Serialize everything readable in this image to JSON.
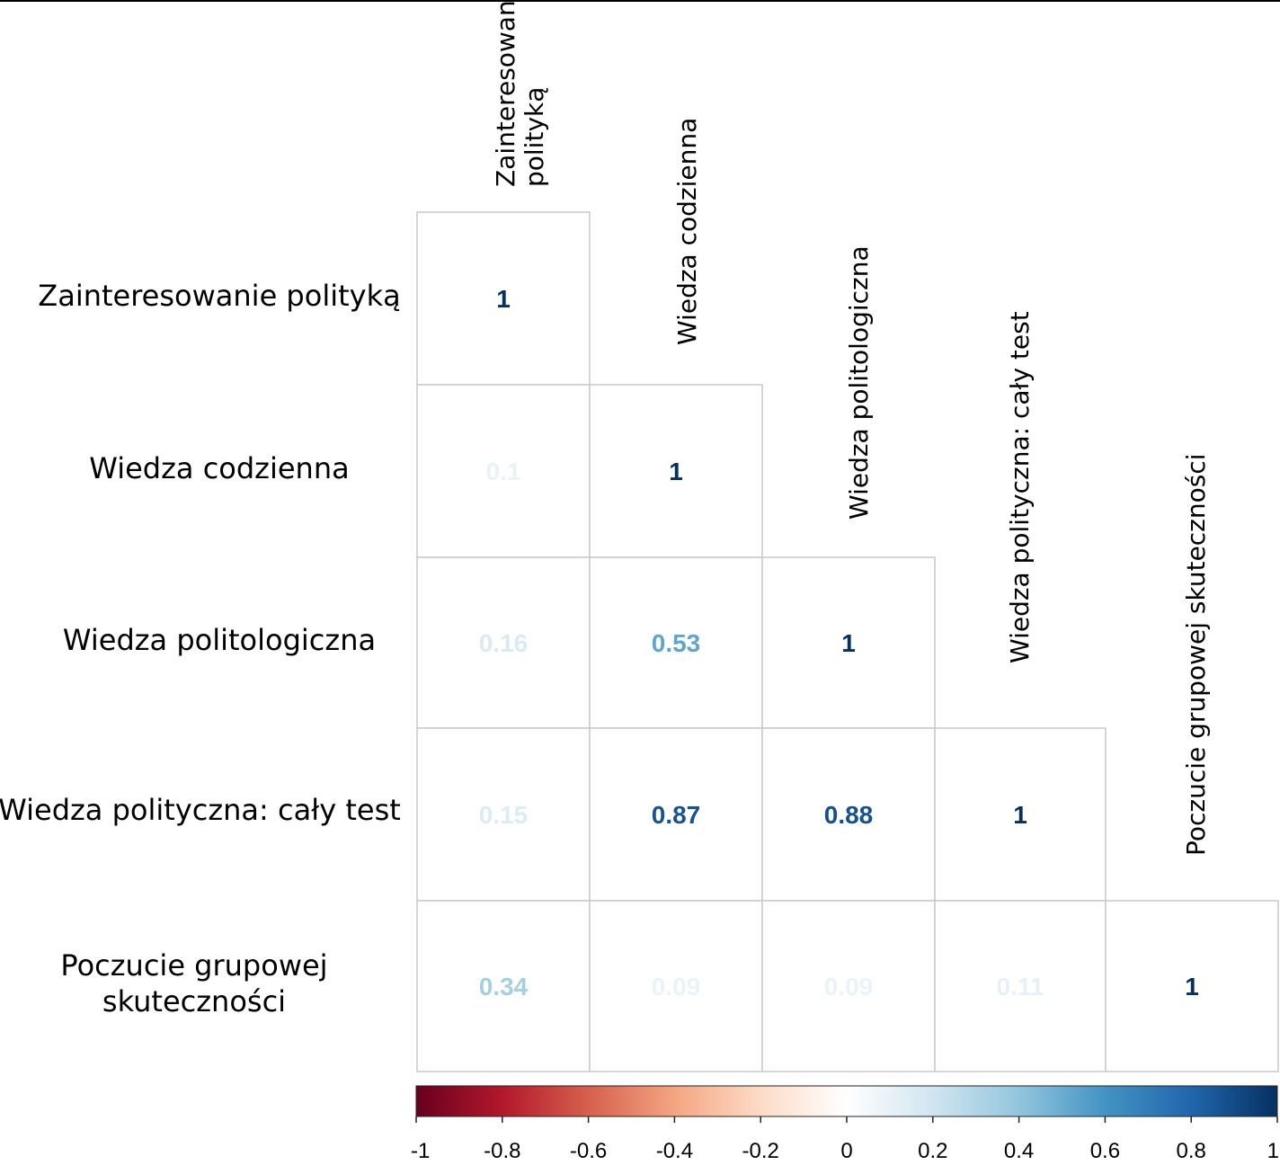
{
  "chart_data": {
    "type": "heatmap",
    "subtype": "lower-triangular correlation matrix",
    "variables": [
      {
        "row_label": [
          "Zainteresowanie polityką"
        ],
        "col_label": [
          "Zainteresowanie",
          "polityką"
        ]
      },
      {
        "row_label": [
          "Wiedza codzienna"
        ],
        "col_label": [
          "Wiedza codzienna"
        ]
      },
      {
        "row_label": [
          "Wiedza politologiczna"
        ],
        "col_label": [
          "Wiedza politologiczna"
        ]
      },
      {
        "row_label": [
          "Wiedza polityczna: cały test"
        ],
        "col_label": [
          "Wiedza polityczna: cały test"
        ]
      },
      {
        "row_label": [
          "Poczucie grupowej",
          "skuteczności"
        ],
        "col_label": [
          "Poczucie grupowej skuteczności"
        ]
      }
    ],
    "cells": [
      [
        {
          "value": 1,
          "text": "1"
        }
      ],
      [
        {
          "value": 0.1,
          "text": "0.1"
        },
        {
          "value": 1,
          "text": "1"
        }
      ],
      [
        {
          "value": 0.16,
          "text": "0.16"
        },
        {
          "value": 0.53,
          "text": "0.53"
        },
        {
          "value": 1,
          "text": "1"
        }
      ],
      [
        {
          "value": 0.15,
          "text": "0.15"
        },
        {
          "value": 0.87,
          "text": "0.87"
        },
        {
          "value": 0.88,
          "text": "0.88"
        },
        {
          "value": 1,
          "text": "1"
        }
      ],
      [
        {
          "value": 0.34,
          "text": "0.34"
        },
        {
          "value": 0.09,
          "text": "0.09"
        },
        {
          "value": 0.09,
          "text": "0.09"
        },
        {
          "value": 0.11,
          "text": "0.11"
        },
        {
          "value": 1,
          "text": "1"
        }
      ]
    ],
    "colorbar": {
      "range": [
        -1,
        1
      ],
      "ticks": [
        "-1",
        "-0.8",
        "-0.6",
        "-0.4",
        "-0.2",
        "0",
        "0.2",
        "0.4",
        "0.6",
        "0.8",
        "1"
      ],
      "colors": [
        "#67001f",
        "#b2182b",
        "#d6604d",
        "#f4a582",
        "#fddbc7",
        "#ffffff",
        "#d1e5f0",
        "#92c5de",
        "#4393c3",
        "#2166ac",
        "#053061"
      ]
    },
    "grid": true
  }
}
